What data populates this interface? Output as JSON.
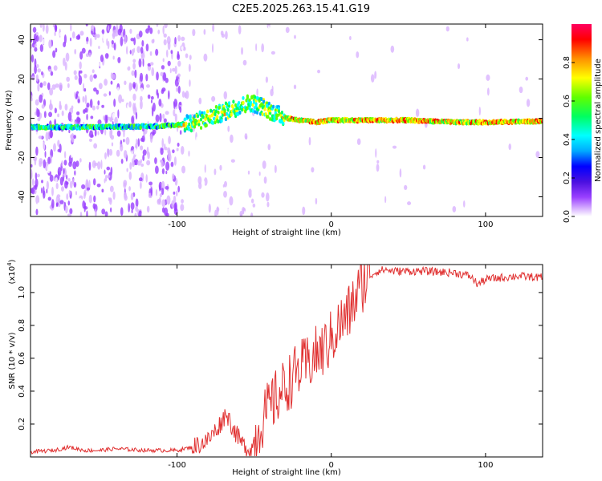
{
  "title": "C2E5.2025.263.15.41.G19",
  "spectrogram": {
    "xlabel": "Height of straight line (km)",
    "ylabel": "Frequency (Hz)",
    "xlim": [
      -195,
      137
    ],
    "ylim": [
      -50,
      48
    ],
    "xticks": [
      -100,
      0,
      100
    ],
    "xtick_labels": [
      "-100",
      "0",
      "100"
    ],
    "yticks": [
      -40,
      -20,
      0,
      20,
      40
    ],
    "ytick_labels": [
      "-40",
      "-20",
      "0",
      "20",
      "40"
    ],
    "colorbar": {
      "label": "Normalized spectral amplitude",
      "ticks": [
        0.0,
        0.2,
        0.4,
        0.6,
        0.8
      ],
      "tick_labels": [
        "0.0",
        "0.2",
        "0.4",
        "0.6",
        "0.8"
      ],
      "range": [
        0,
        1
      ]
    }
  },
  "chart_data": [
    {
      "type": "heatmap",
      "title": "C2E5.2025.263.15.41.G19",
      "xlabel": "Height of straight line (km)",
      "ylabel": "Frequency (Hz)",
      "xlim": [
        -195,
        137
      ],
      "ylim": [
        -50,
        48
      ],
      "colorbar_label": "Normalized spectral amplitude",
      "ridge_center_hz": {
        "x": [
          -195,
          -150,
          -110,
          -95,
          -80,
          -70,
          -60,
          -52,
          -45,
          -40,
          -35,
          -28,
          -20,
          -10,
          0,
          20,
          50,
          80,
          100,
          137
        ],
        "y": [
          -4.5,
          -4.5,
          -4,
          -3,
          0,
          3,
          6,
          8,
          6,
          4,
          2,
          0,
          -1,
          -2,
          -1,
          -1,
          -1,
          -2,
          -2,
          -1.5
        ]
      }
    },
    {
      "type": "line",
      "xlabel": "Height of straight line (km)",
      "ylabel": "SNR (10 * v/v)",
      "ylabel_multiplier": "(x10",
      "ylabel_multiplier_exp": "4",
      "ylabel_multiplier_close": ")",
      "xlim": [
        -195,
        137
      ],
      "ylim": [
        0,
        1.17
      ],
      "xticks": [
        -100,
        0,
        100
      ],
      "xtick_labels": [
        "-100",
        "0",
        "100"
      ],
      "yticks": [
        0.2,
        0.4,
        0.6,
        0.8,
        1.0
      ],
      "ytick_labels": [
        "0.2",
        "0.4",
        "0.6",
        "0.8",
        "1.0"
      ],
      "series": [
        {
          "name": "SNR",
          "color": "#e03030",
          "x": [
            -195,
            -180,
            -170,
            -160,
            -150,
            -140,
            -120,
            -100,
            -90,
            -80,
            -72,
            -68,
            -64,
            -58,
            -52,
            -46,
            -40,
            -34,
            -28,
            -22,
            -16,
            -10,
            -5,
            0,
            5,
            10,
            15,
            20,
            25,
            30,
            35,
            40,
            60,
            80,
            90,
            95,
            100,
            120,
            137
          ],
          "y": [
            0.03,
            0.04,
            0.06,
            0.04,
            0.04,
            0.05,
            0.04,
            0.04,
            0.06,
            0.1,
            0.2,
            0.27,
            0.18,
            0.08,
            0.04,
            0.2,
            0.3,
            0.38,
            0.45,
            0.52,
            0.56,
            0.62,
            0.65,
            0.72,
            0.8,
            0.85,
            0.95,
            1.05,
            1.1,
            1.13,
            1.14,
            1.13,
            1.13,
            1.12,
            1.1,
            1.05,
            1.08,
            1.1,
            1.09
          ]
        }
      ]
    }
  ],
  "snr_panel": {
    "xlabel": "Height of straight line (km)",
    "ylabel": "SNR (10 * v/v)",
    "multiplier_base": "(x10",
    "multiplier_exp": "4",
    "multiplier_close": ")"
  },
  "colors": {
    "line": "#e03030",
    "colormap": [
      "#ffffff",
      "#d9b3ff",
      "#9a40ff",
      "#4a10e0",
      "#0000ff",
      "#00aaff",
      "#00ffff",
      "#00ff60",
      "#60ff00",
      "#ffff00",
      "#ff9000",
      "#ff0000",
      "#ff0060"
    ]
  }
}
